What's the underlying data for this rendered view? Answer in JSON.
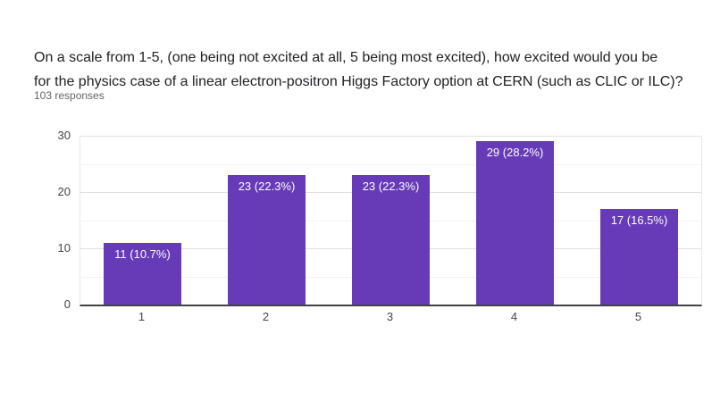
{
  "question": {
    "title": "On a scale from 1-5, (one being not excited at all, 5 being most excited), how excited would you be for the physics case of a linear electron-positron Higgs Factory option at CERN (such as CLIC or ILC)?",
    "title_lines": [
      "On a scale from 1-5, (one being not excited at all, 5 being most excited), how excited would you be",
      "for the physics case of a linear electron-positron Higgs Factory option at CERN (such as CLIC or ILC)?"
    ],
    "response_count": "103 responses"
  },
  "chart_data": {
    "type": "bar",
    "categories": [
      "1",
      "2",
      "3",
      "4",
      "5"
    ],
    "values": [
      11,
      23,
      23,
      29,
      17
    ],
    "bar_labels": [
      "11 (10.7%)",
      "23 (22.3%)",
      "23 (22.3%)",
      "29 (28.2%)",
      "17 (16.5%)"
    ],
    "title": "",
    "xlabel": "",
    "ylabel": "",
    "ylim": [
      0,
      30
    ],
    "yticks": [
      0,
      10,
      20,
      30
    ],
    "minor_gridlines": [
      5,
      15,
      25
    ],
    "grid": "horizontal",
    "legend": false,
    "bar_color": "#673ab7",
    "bar_label_color": "#ffffff",
    "axis_label_color": "#444444",
    "baseline_color": "#424242"
  }
}
